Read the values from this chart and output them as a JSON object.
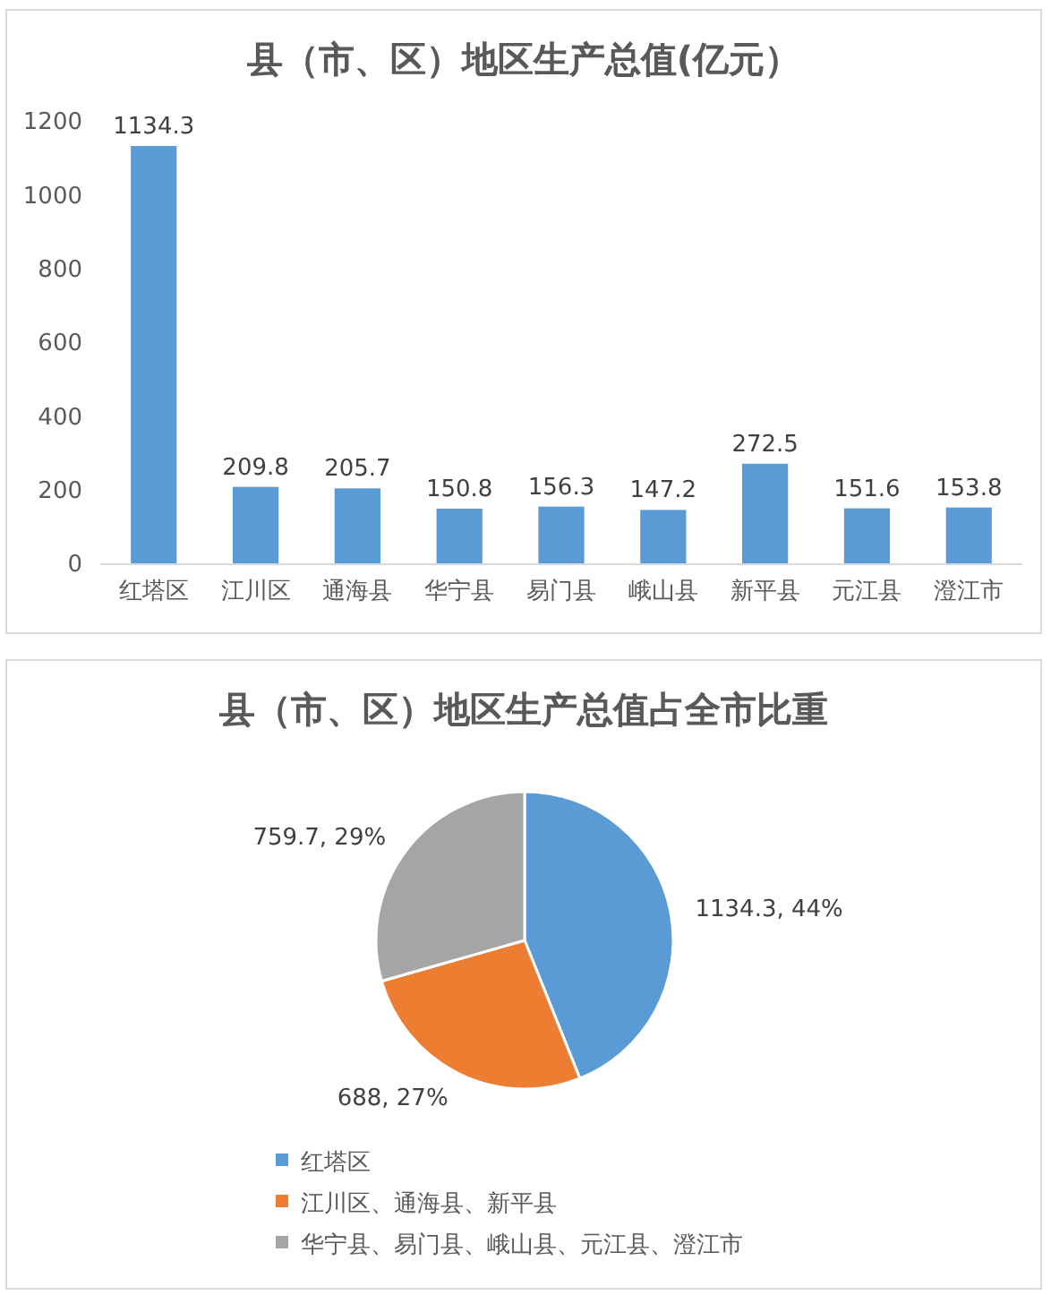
{
  "chart_data": [
    {
      "type": "bar",
      "title": "县（市、区）地区生产总值(亿元）",
      "categories": [
        "红塔区",
        "江川区",
        "通海县",
        "华宁县",
        "易门县",
        "峨山县",
        "新平县",
        "元江县",
        "澄江市"
      ],
      "values": [
        1134.3,
        209.8,
        205.7,
        150.8,
        156.3,
        147.2,
        272.5,
        151.6,
        153.8
      ],
      "color": "#5b9bd5",
      "ylim": [
        0,
        1200
      ],
      "yticks": [
        0,
        200,
        400,
        600,
        800,
        1000,
        1200
      ],
      "data_labels": true,
      "grid": false
    },
    {
      "type": "pie",
      "title": "县（市、区）地区生产总值占全市比重",
      "categories": [
        "红塔区",
        "江川区、通海县、新平县",
        "华宁县、易门县、峨山县、元江县、澄江市"
      ],
      "values": [
        1134.3,
        688,
        759.7
      ],
      "colors": [
        "#5b9bd5",
        "#ed7d31",
        "#a5a5a5"
      ],
      "value_labels": [
        "1134.3, 44%",
        "688, 27%",
        "759.7, 29%"
      ],
      "legend": "bottom"
    }
  ]
}
